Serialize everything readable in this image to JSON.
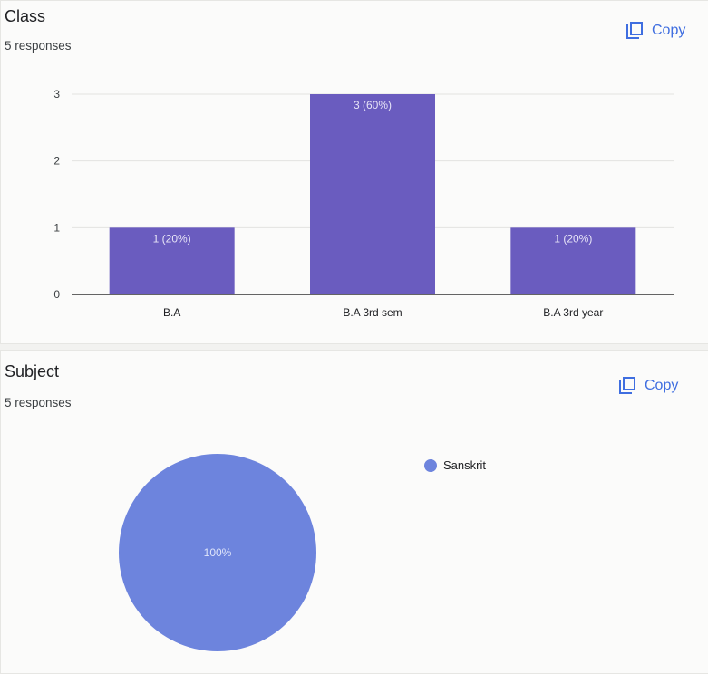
{
  "class_card": {
    "title": "Class",
    "responses": "5 responses",
    "copy_label": "Copy"
  },
  "subject_card": {
    "title": "Subject",
    "responses": "5 responses",
    "copy_label": "Copy"
  },
  "icons": {
    "copy": "copy-icon"
  },
  "colors": {
    "bar": "#6a5cbf",
    "pie": "#6d84dd",
    "accent": "#3f6ee0"
  },
  "chart_data": [
    {
      "type": "bar",
      "title": "Class",
      "categories": [
        "B.A",
        "B.A 3rd sem",
        "B.A 3rd year"
      ],
      "values": [
        1,
        3,
        1
      ],
      "data_labels": [
        "1 (20%)",
        "3 (60%)",
        "1 (20%)"
      ],
      "yticks": [
        "0",
        "1",
        "2",
        "3"
      ],
      "ylim": [
        0,
        3
      ],
      "grid": true
    },
    {
      "type": "pie",
      "title": "Subject",
      "labels": [
        "Sanskrit"
      ],
      "values": [
        5
      ],
      "data_labels": [
        "100%"
      ],
      "legend": "right"
    }
  ]
}
